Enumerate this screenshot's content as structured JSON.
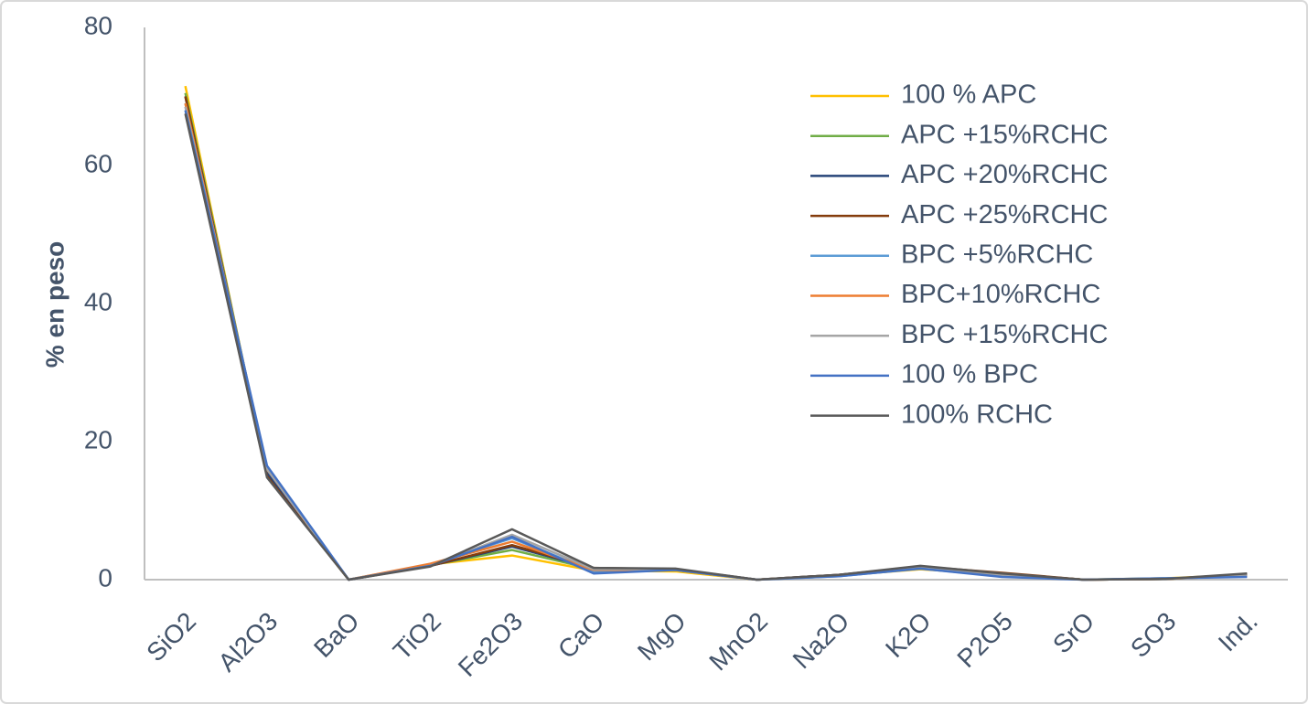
{
  "chart_data": {
    "type": "line",
    "y_label": "% en peso",
    "categories": [
      "SiO2",
      "Al2O3",
      "BaO",
      "TiO2",
      "Fe2O3",
      "CaO",
      "MgO",
      "MnO2",
      "Na2O",
      "K2O",
      "P2O5",
      "SrO",
      "SO3",
      "Ind."
    ],
    "series": [
      {
        "name": "100 % APC",
        "color": "#FFC000",
        "values": [
          71.5,
          15.0,
          0,
          2.2,
          3.5,
          1.3,
          1.2,
          0,
          0.6,
          1.5,
          0.8,
          0,
          0.2,
          0.7
        ]
      },
      {
        "name": "APC +15%RCHC",
        "color": "#70AD47",
        "values": [
          70.5,
          15.5,
          0,
          2.1,
          4.3,
          1.5,
          1.4,
          0,
          0.6,
          1.7,
          0.8,
          0,
          0.1,
          0.6
        ]
      },
      {
        "name": "APC +20%RCHC",
        "color": "#264478",
        "values": [
          70.0,
          15.5,
          0,
          2.0,
          4.8,
          1.6,
          1.5,
          0,
          0.7,
          1.8,
          0.9,
          0,
          0.1,
          0.7
        ]
      },
      {
        "name": "APC +25%RCHC",
        "color": "#843C0C",
        "values": [
          70.0,
          15.0,
          0,
          2.0,
          5.0,
          1.7,
          1.5,
          0,
          0.7,
          1.9,
          1.0,
          0,
          0.1,
          0.8
        ]
      },
      {
        "name": "BPC +5%RCHC",
        "color": "#5B9BD5",
        "values": [
          69.0,
          16.0,
          0,
          2.2,
          6.0,
          1.2,
          1.4,
          0,
          0.5,
          1.6,
          0.5,
          0,
          0.2,
          0.5
        ]
      },
      {
        "name": "BPC+10%RCHC",
        "color": "#ED7D31",
        "values": [
          69.0,
          16.0,
          0,
          2.3,
          5.5,
          1.4,
          1.4,
          0,
          0.6,
          1.7,
          0.6,
          0,
          0.1,
          0.6
        ]
      },
      {
        "name": "BPC +15%RCHC",
        "color": "#A5A5A5",
        "values": [
          68.5,
          16.0,
          0,
          2.0,
          6.5,
          1.5,
          1.5,
          0,
          0.6,
          1.8,
          0.7,
          0,
          0.1,
          0.7
        ]
      },
      {
        "name": "100 % BPC",
        "color": "#4472C4",
        "values": [
          68.0,
          16.5,
          0,
          2.0,
          6.2,
          0.9,
          1.4,
          0,
          0.5,
          1.6,
          0.4,
          0,
          0.2,
          0.4
        ]
      },
      {
        "name": "100% RCHC",
        "color": "#595959",
        "values": [
          67.5,
          14.8,
          0,
          1.9,
          7.3,
          1.7,
          1.6,
          0,
          0.7,
          2.0,
          0.9,
          0,
          0.1,
          0.9
        ]
      }
    ],
    "ylim": [
      0,
      80
    ],
    "yticks": [
      0,
      20,
      40,
      60,
      80
    ],
    "grid": false,
    "legend_position": "right"
  }
}
